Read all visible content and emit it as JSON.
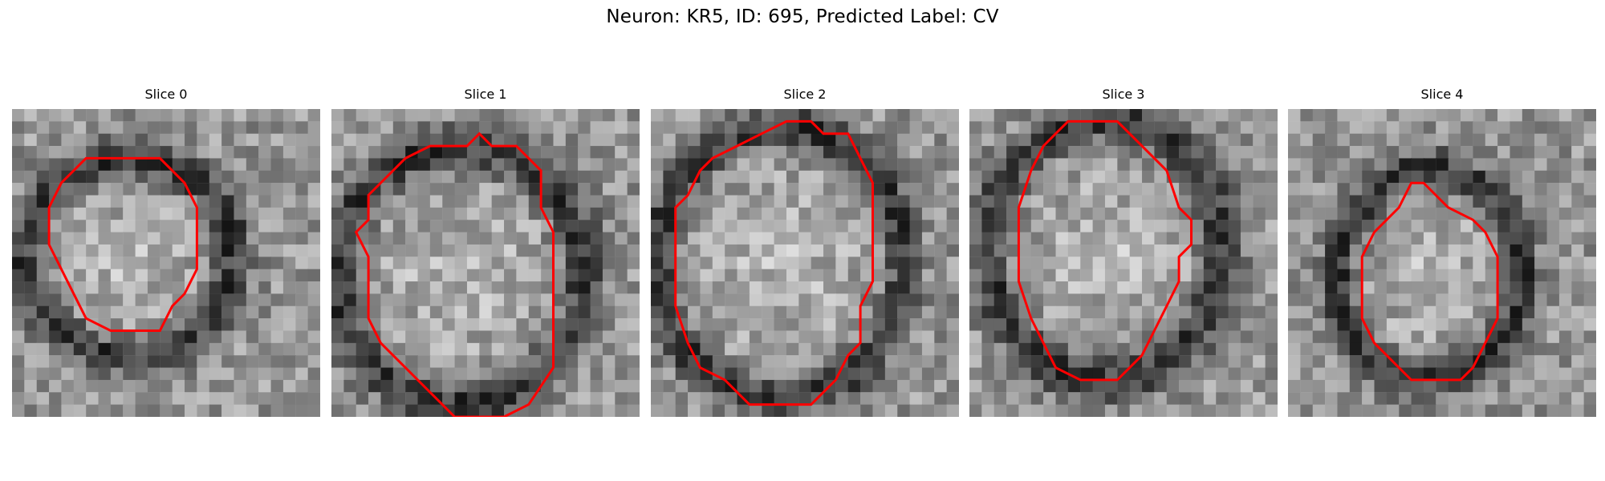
{
  "title": "Neuron: KR5, ID: 695, Predicted Label: CV",
  "contour_color": "#ff0000",
  "colormap": "gray",
  "panels": [
    {
      "label": "Slice 0",
      "contour": [
        [
          9,
          4
        ],
        [
          12,
          4
        ],
        [
          14,
          6
        ],
        [
          15,
          8
        ],
        [
          15,
          13
        ],
        [
          14,
          15
        ],
        [
          13,
          16
        ],
        [
          12,
          18
        ],
        [
          8,
          18
        ],
        [
          6,
          17
        ],
        [
          5,
          15
        ],
        [
          4,
          13
        ],
        [
          3,
          11
        ],
        [
          3,
          8
        ],
        [
          4,
          6
        ],
        [
          5,
          5
        ],
        [
          6,
          4
        ]
      ]
    },
    {
      "label": "Slice 1",
      "contour": [
        [
          8,
          3
        ],
        [
          11,
          3
        ],
        [
          12,
          2
        ],
        [
          13,
          3
        ],
        [
          15,
          3
        ],
        [
          17,
          5
        ],
        [
          17,
          8
        ],
        [
          18,
          10
        ],
        [
          18,
          21
        ],
        [
          16,
          24
        ],
        [
          14,
          25
        ],
        [
          10,
          25
        ],
        [
          8,
          23
        ],
        [
          6,
          21
        ],
        [
          4,
          19
        ],
        [
          3,
          17
        ],
        [
          3,
          12
        ],
        [
          2,
          10
        ],
        [
          3,
          9
        ],
        [
          3,
          7
        ],
        [
          4,
          6
        ],
        [
          5,
          5
        ],
        [
          6,
          4
        ]
      ]
    },
    {
      "label": "Slice 2",
      "contour": [
        [
          11,
          1
        ],
        [
          13,
          1
        ],
        [
          14,
          2
        ],
        [
          16,
          2
        ],
        [
          17,
          4
        ],
        [
          18,
          6
        ],
        [
          18,
          14
        ],
        [
          17,
          16
        ],
        [
          17,
          19
        ],
        [
          16,
          20
        ],
        [
          15,
          22
        ],
        [
          14,
          23
        ],
        [
          13,
          24
        ],
        [
          8,
          24
        ],
        [
          6,
          22
        ],
        [
          4,
          21
        ],
        [
          3,
          19
        ],
        [
          2,
          16
        ],
        [
          2,
          8
        ],
        [
          3,
          7
        ],
        [
          4,
          5
        ],
        [
          5,
          4
        ],
        [
          7,
          3
        ],
        [
          9,
          2
        ]
      ]
    },
    {
      "label": "Slice 3",
      "contour": [
        [
          8,
          1
        ],
        [
          12,
          1
        ],
        [
          14,
          3
        ],
        [
          16,
          5
        ],
        [
          17,
          8
        ],
        [
          18,
          9
        ],
        [
          18,
          11
        ],
        [
          17,
          12
        ],
        [
          17,
          14
        ],
        [
          16,
          16
        ],
        [
          15,
          18
        ],
        [
          14,
          20
        ],
        [
          13,
          21
        ],
        [
          12,
          22
        ],
        [
          9,
          22
        ],
        [
          7,
          21
        ],
        [
          6,
          19
        ],
        [
          5,
          17
        ],
        [
          4,
          14
        ],
        [
          4,
          8
        ],
        [
          5,
          5
        ],
        [
          6,
          3
        ],
        [
          7,
          2
        ]
      ]
    },
    {
      "label": "Slice 4",
      "contour": [
        [
          10,
          6
        ],
        [
          11,
          6
        ],
        [
          13,
          8
        ],
        [
          15,
          9
        ],
        [
          16,
          10
        ],
        [
          17,
          12
        ],
        [
          17,
          17
        ],
        [
          16,
          19
        ],
        [
          15,
          21
        ],
        [
          14,
          22
        ],
        [
          10,
          22
        ],
        [
          9,
          21
        ],
        [
          8,
          20
        ],
        [
          7,
          19
        ],
        [
          6,
          17
        ],
        [
          6,
          12
        ],
        [
          7,
          10
        ],
        [
          8,
          9
        ],
        [
          9,
          8
        ]
      ]
    }
  ]
}
